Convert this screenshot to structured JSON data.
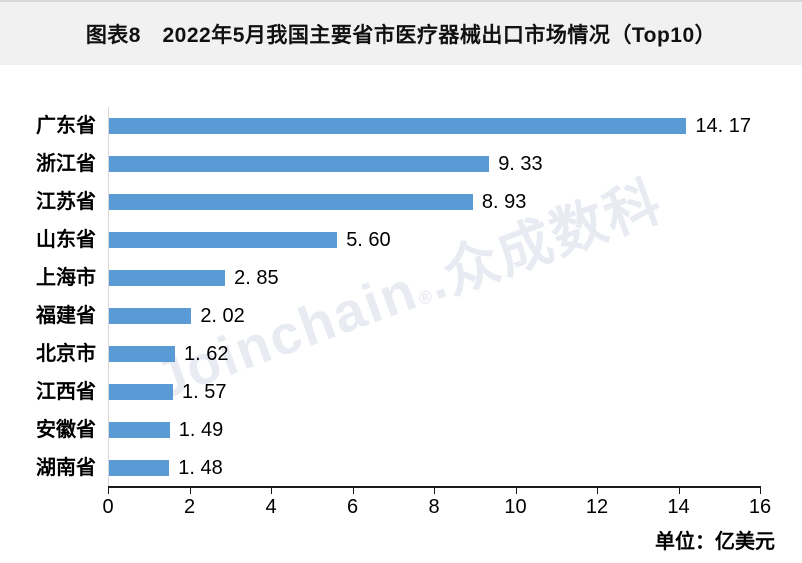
{
  "header": {
    "bg_color": "#f1f1f2"
  },
  "chart_data": {
    "type": "bar",
    "orientation": "horizontal",
    "title": "图表8　2022年5月我国主要省市医疗器械出口市场情况（Top10）",
    "categories": [
      "广东省",
      "浙江省",
      "江苏省",
      "山东省",
      "上海市",
      "福建省",
      "北京市",
      "江西省",
      "安徽省",
      "湖南省"
    ],
    "values": [
      14.17,
      9.33,
      8.93,
      5.6,
      2.85,
      2.02,
      1.62,
      1.57,
      1.49,
      1.48
    ],
    "value_labels": [
      "14. 17",
      "9. 33",
      "8. 93",
      "5. 60",
      "2. 85",
      "2. 02",
      "1. 62",
      "1. 57",
      "1. 49",
      "1. 48"
    ],
    "xlim": [
      0,
      16
    ],
    "x_ticks": [
      "0",
      "2",
      "4",
      "6",
      "8",
      "10",
      "12",
      "14",
      "16"
    ],
    "unit_label": "单位：亿美元",
    "bar_color": "#5B9BD5",
    "axis_line_color": "#1a1a1a",
    "category_axis_line_color": "#d9d9d9",
    "grid": false,
    "legend": "none",
    "data_labels": true
  },
  "watermark": {
    "latin": "Joinchain",
    "reg": "®",
    "cjk": ".众成数科",
    "color": "#e8ebf2"
  }
}
